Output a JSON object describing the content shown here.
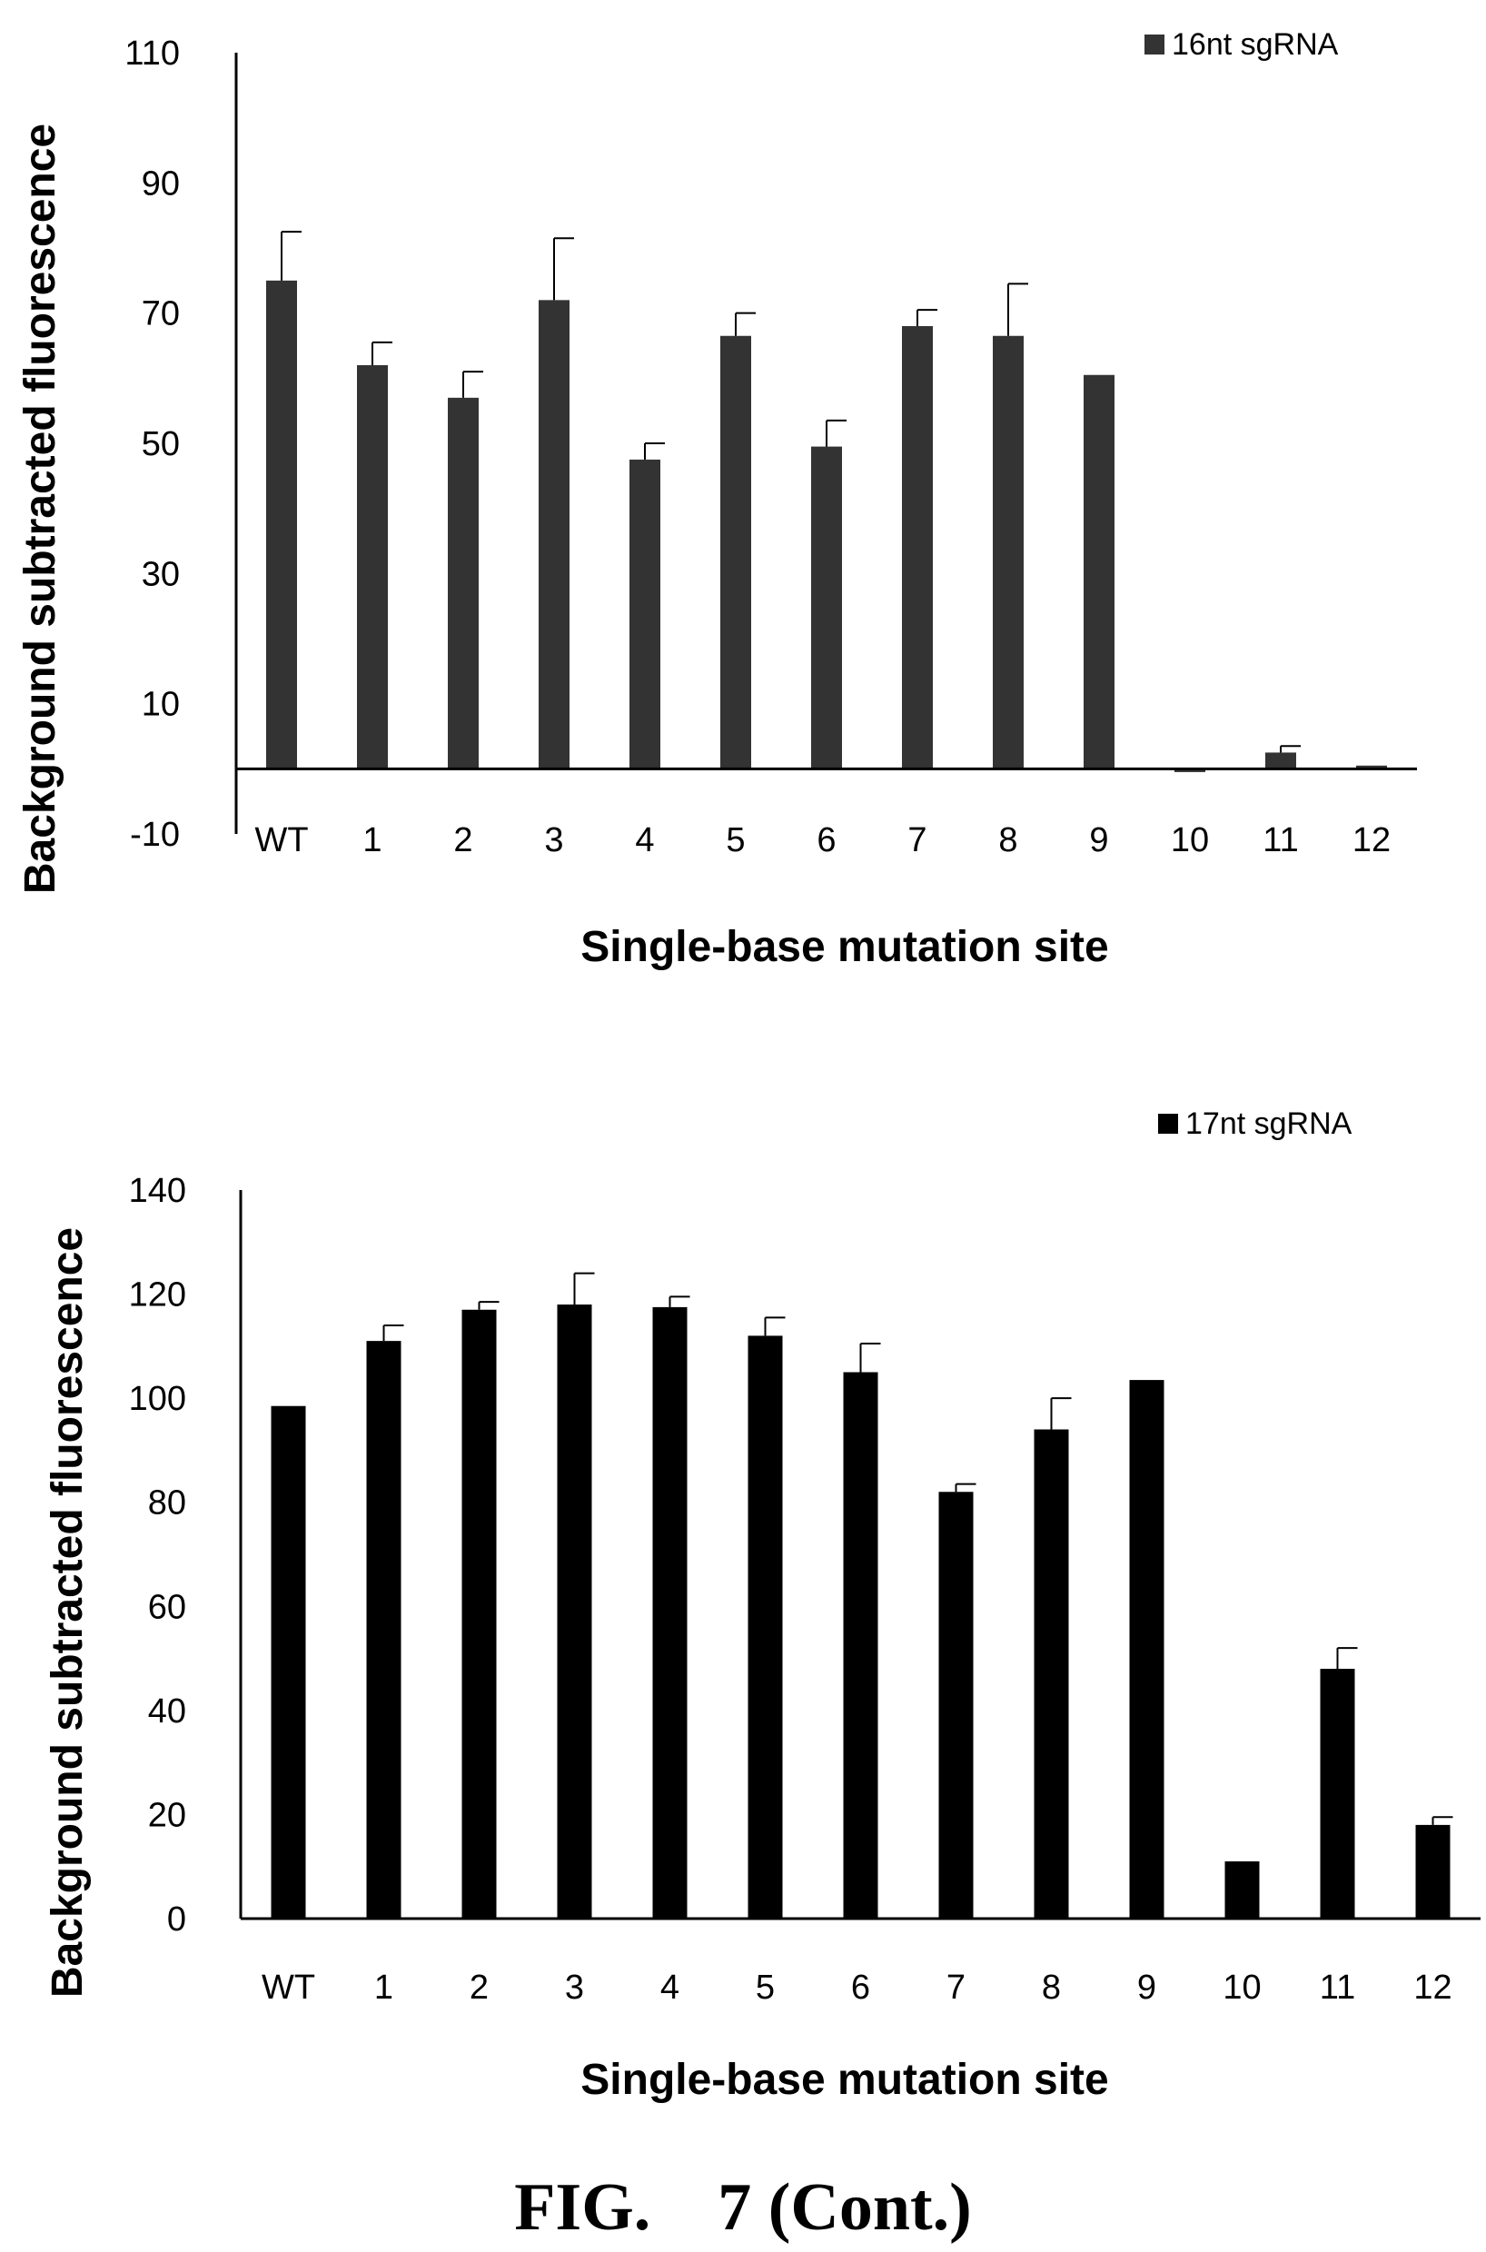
{
  "figure_caption": "FIG.    7 (Cont.)",
  "chart_data": [
    {
      "type": "bar",
      "title": "",
      "xlabel": "Single-base mutation site",
      "ylabel": "Background subtracted fluorescence",
      "categories": [
        "WT",
        "1",
        "2",
        "3",
        "4",
        "5",
        "6",
        "7",
        "8",
        "9",
        "10",
        "11",
        "12"
      ],
      "series": [
        {
          "name": "16nt sgRNA",
          "color": "#333333",
          "values": [
            75,
            62,
            57,
            72,
            47.5,
            66.5,
            49.5,
            68,
            66.5,
            60.5,
            -0.5,
            2.5,
            0.5
          ],
          "error": [
            7.5,
            3.5,
            4,
            9.5,
            2.5,
            3.5,
            4,
            2.5,
            8,
            0,
            0,
            1,
            0
          ]
        }
      ],
      "ylim": [
        -10,
        110
      ],
      "yticks": [
        -10,
        10,
        30,
        50,
        70,
        90,
        110
      ],
      "grid": false,
      "legend": "top-right"
    },
    {
      "type": "bar",
      "title": "",
      "xlabel": "Single-base mutation site",
      "ylabel": "Background subtracted fluorescence",
      "categories": [
        "WT",
        "1",
        "2",
        "3",
        "4",
        "5",
        "6",
        "7",
        "8",
        "9",
        "10",
        "11",
        "12"
      ],
      "series": [
        {
          "name": "17nt sgRNA",
          "color": "#000000",
          "values": [
            98.5,
            111,
            117,
            118,
            117.5,
            112,
            105,
            82,
            94,
            103.5,
            11,
            48,
            18
          ],
          "error": [
            0,
            3,
            1.5,
            6,
            2,
            3.5,
            5.5,
            1.5,
            6,
            0,
            0,
            4,
            1.5
          ]
        }
      ],
      "ylim": [
        0,
        140
      ],
      "yticks": [
        0,
        20,
        40,
        60,
        80,
        100,
        120,
        140
      ],
      "grid": false,
      "legend": "top-right"
    }
  ]
}
